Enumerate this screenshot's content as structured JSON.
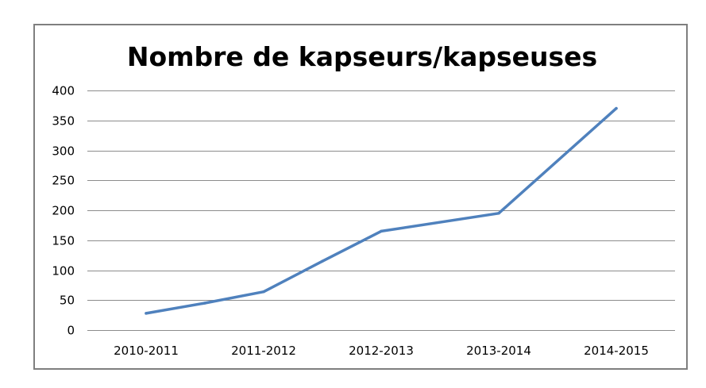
{
  "chart_data": {
    "type": "line",
    "title": "Nombre de kapseurs/kapseuses",
    "xlabel": "",
    "ylabel": "",
    "categories": [
      "2010-2011",
      "2011-2012",
      "2012-2013",
      "2013-2014",
      "2014-2015"
    ],
    "points": [
      {
        "x": 0,
        "y": 28
      },
      {
        "x": 0.5,
        "y": 45
      },
      {
        "x": 1,
        "y": 64
      },
      {
        "x": 1.5,
        "y": 115
      },
      {
        "x": 2,
        "y": 165
      },
      {
        "x": 3,
        "y": 195
      },
      {
        "x": 4,
        "y": 370
      }
    ],
    "ylim": [
      0,
      400
    ],
    "yticks": [
      0,
      50,
      100,
      150,
      200,
      250,
      300,
      350,
      400
    ],
    "grid": true,
    "legend": "none",
    "line_color": "#4f81bd",
    "grid_color": "#8c8c8c"
  }
}
